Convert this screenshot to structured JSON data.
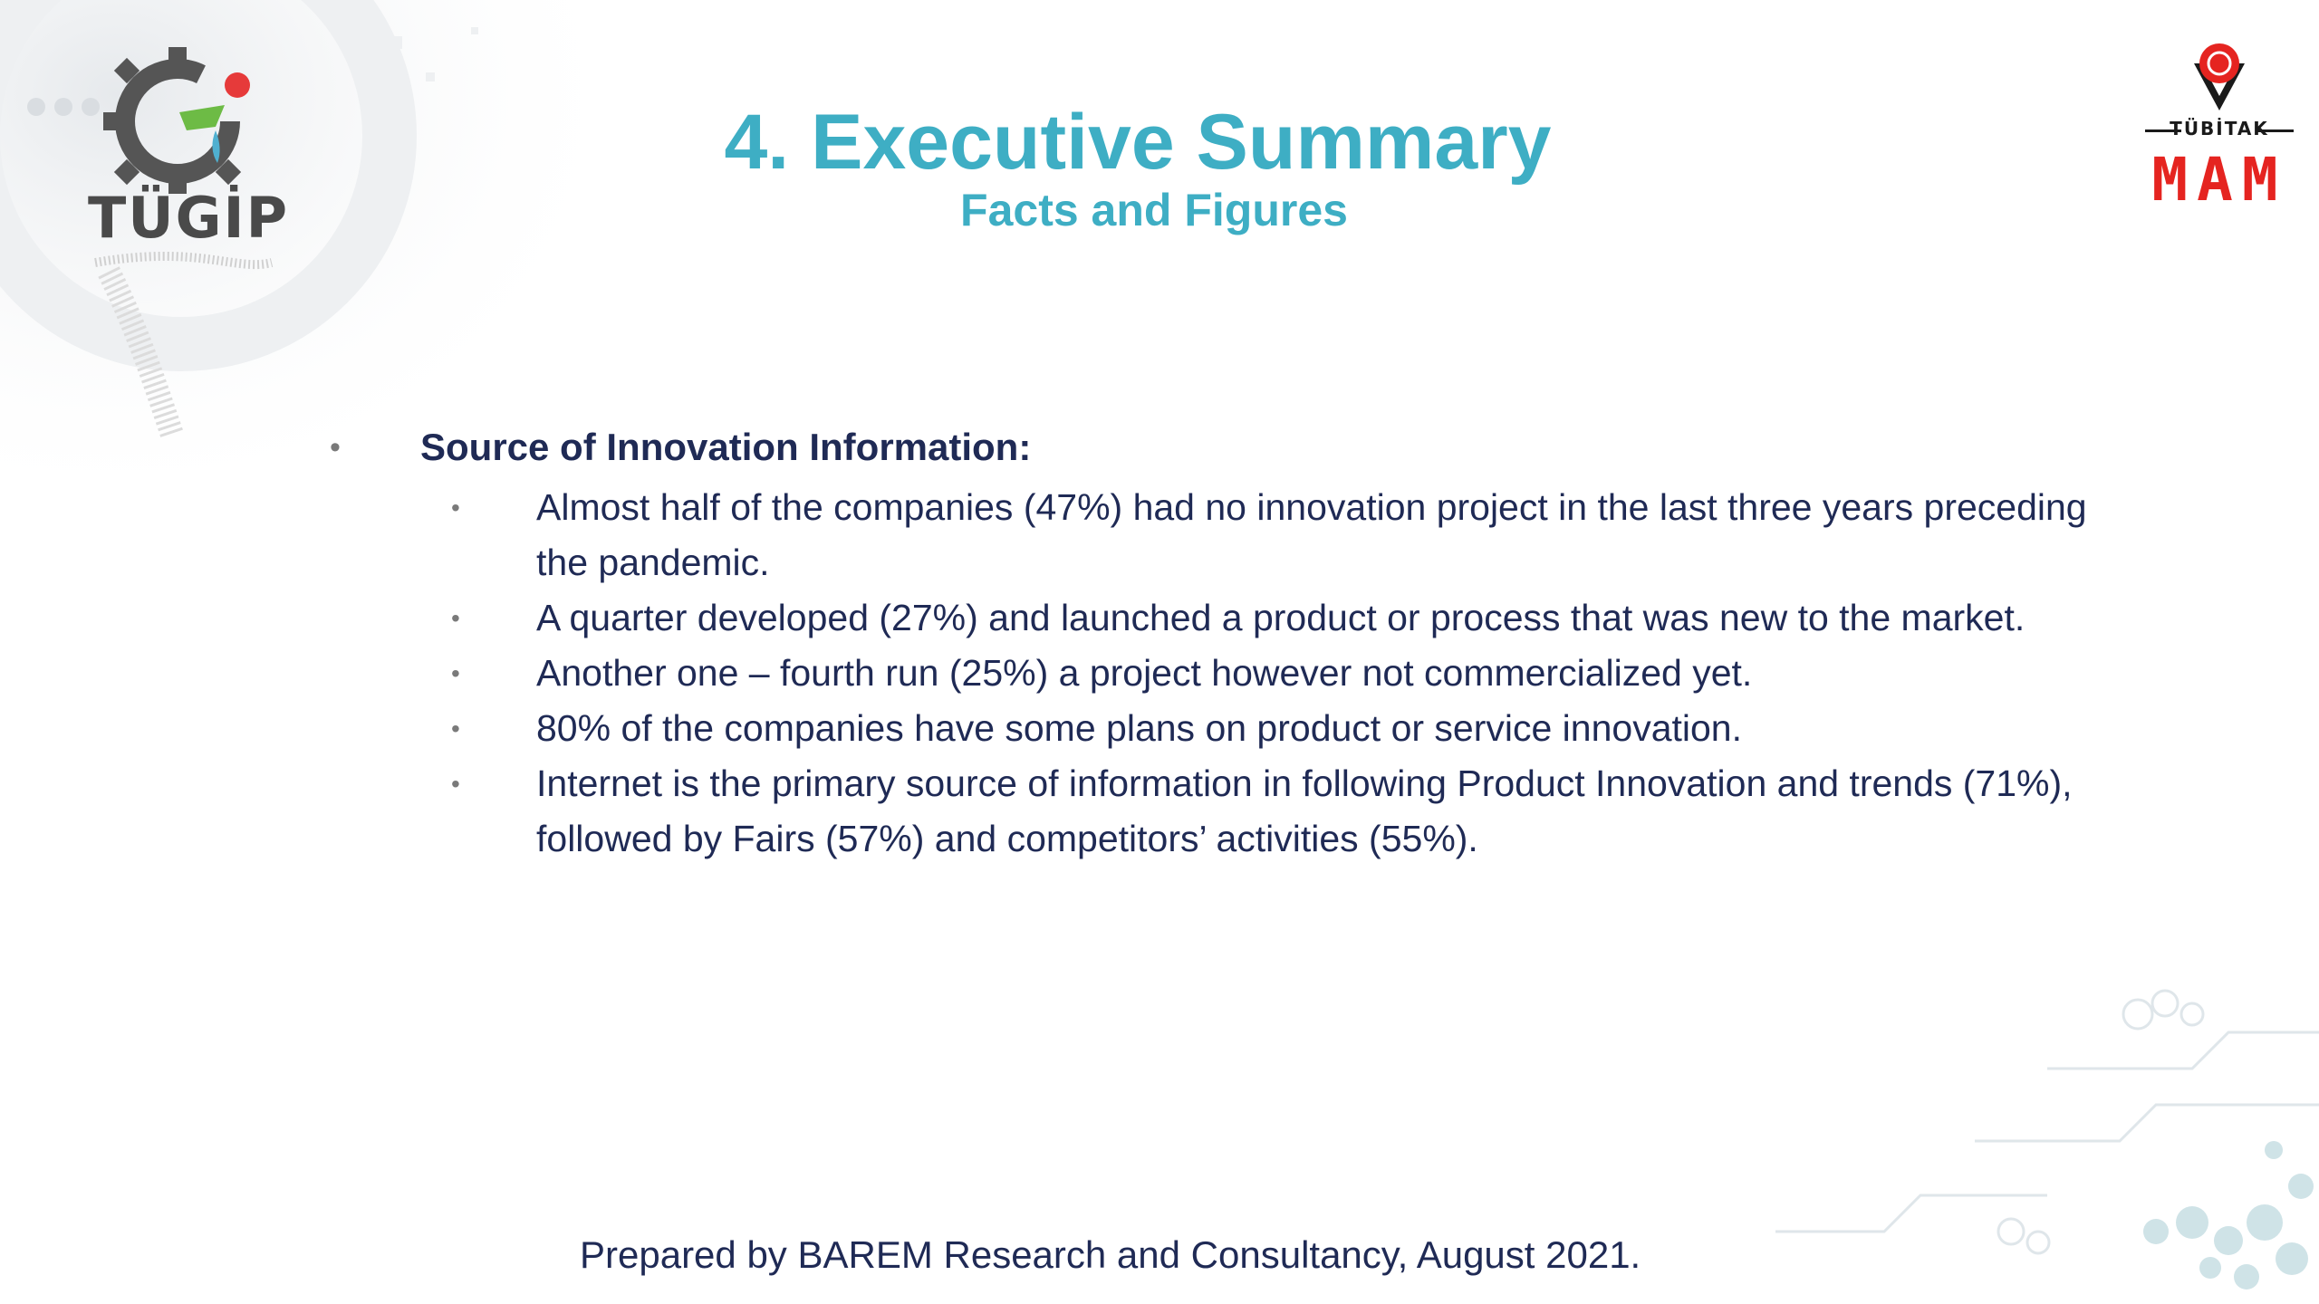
{
  "logos": {
    "tugip_text": "TÜGİP",
    "tubitak_text": "TÜBİTAK",
    "mam_text": "MAM"
  },
  "title": "4. Executive Summary",
  "subtitle": "Facts and Figures",
  "section": {
    "heading": "Source of Innovation Information:",
    "bullets": [
      "Almost half of the companies (47%) had no  innovation project in the last three years preceding the pandemic.",
      "A quarter developed (27%) and launched a product or process that was new to the market.",
      "Another one – fourth run (25%) a project however not commercialized yet.",
      "80% of the companies have some plans  on product or service innovation.",
      "Internet is the primary source of information in following Product Innovation and trends (71%), followed by Fairs (57%) and competitors’ activities (55%)."
    ]
  },
  "footer": "Prepared by BAREM Research and Consultancy, August 2021.",
  "colors": {
    "title": "#3eaec4",
    "body": "#1f2a55",
    "brand_red": "#e52420"
  }
}
